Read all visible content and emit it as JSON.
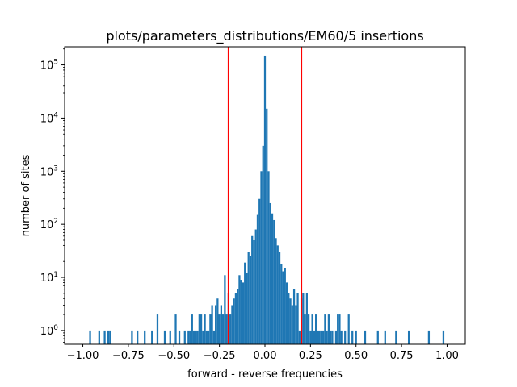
{
  "chart_data": {
    "type": "bar",
    "title": "plots/parameters_distributions/EM60/5 insertions",
    "xlabel": "forward - reverse frequencies",
    "ylabel": "number of sites",
    "xlim": [
      -1.1,
      1.1
    ],
    "ylim": [
      0.55,
      220000
    ],
    "yscale": "log",
    "grid": false,
    "legend": "none",
    "bar_color": "#1f77b4",
    "threshold_color": "#ff0000",
    "x_ticks": [
      -1.0,
      -0.75,
      -0.5,
      -0.25,
      0.0,
      0.25,
      0.5,
      0.75,
      1.0
    ],
    "x_tick_labels": [
      "−1.00",
      "−0.75",
      "−0.50",
      "−0.25",
      "0.00",
      "0.25",
      "0.50",
      "0.75",
      "1.00"
    ],
    "y_ticks": [
      1,
      10,
      100,
      1000,
      10000,
      100000
    ],
    "y_tick_labels": [
      {
        "base": "10",
        "exp": "0"
      },
      {
        "base": "10",
        "exp": "1"
      },
      {
        "base": "10",
        "exp": "2"
      },
      {
        "base": "10",
        "exp": "3"
      },
      {
        "base": "10",
        "exp": "4"
      },
      {
        "base": "10",
        "exp": "5"
      }
    ],
    "bin_width": 0.01,
    "bins": [
      {
        "x": -0.96,
        "count": 1
      },
      {
        "x": -0.91,
        "count": 1
      },
      {
        "x": -0.88,
        "count": 1
      },
      {
        "x": -0.86,
        "count": 1
      },
      {
        "x": -0.85,
        "count": 1
      },
      {
        "x": -0.73,
        "count": 1
      },
      {
        "x": -0.7,
        "count": 1
      },
      {
        "x": -0.66,
        "count": 1
      },
      {
        "x": -0.62,
        "count": 1
      },
      {
        "x": -0.59,
        "count": 2
      },
      {
        "x": -0.55,
        "count": 1
      },
      {
        "x": -0.52,
        "count": 1
      },
      {
        "x": -0.49,
        "count": 2
      },
      {
        "x": -0.47,
        "count": 1
      },
      {
        "x": -0.44,
        "count": 1
      },
      {
        "x": -0.42,
        "count": 1
      },
      {
        "x": -0.41,
        "count": 1
      },
      {
        "x": -0.4,
        "count": 2
      },
      {
        "x": -0.39,
        "count": 1
      },
      {
        "x": -0.38,
        "count": 1
      },
      {
        "x": -0.37,
        "count": 1
      },
      {
        "x": -0.36,
        "count": 2
      },
      {
        "x": -0.35,
        "count": 2
      },
      {
        "x": -0.34,
        "count": 1
      },
      {
        "x": -0.33,
        "count": 2
      },
      {
        "x": -0.32,
        "count": 1
      },
      {
        "x": -0.31,
        "count": 1
      },
      {
        "x": -0.3,
        "count": 2
      },
      {
        "x": -0.29,
        "count": 3
      },
      {
        "x": -0.28,
        "count": 1
      },
      {
        "x": -0.27,
        "count": 3
      },
      {
        "x": -0.26,
        "count": 4
      },
      {
        "x": -0.25,
        "count": 2
      },
      {
        "x": -0.24,
        "count": 3
      },
      {
        "x": -0.23,
        "count": 2
      },
      {
        "x": -0.22,
        "count": 11
      },
      {
        "x": -0.21,
        "count": 2
      },
      {
        "x": -0.2,
        "count": 5
      },
      {
        "x": -0.19,
        "count": 2
      },
      {
        "x": -0.18,
        "count": 3
      },
      {
        "x": -0.17,
        "count": 4
      },
      {
        "x": -0.16,
        "count": 5
      },
      {
        "x": -0.15,
        "count": 6
      },
      {
        "x": -0.14,
        "count": 11
      },
      {
        "x": -0.13,
        "count": 9
      },
      {
        "x": -0.12,
        "count": 8
      },
      {
        "x": -0.11,
        "count": 19
      },
      {
        "x": -0.1,
        "count": 12
      },
      {
        "x": -0.09,
        "count": 30
      },
      {
        "x": -0.08,
        "count": 25
      },
      {
        "x": -0.07,
        "count": 60
      },
      {
        "x": -0.06,
        "count": 50
      },
      {
        "x": -0.05,
        "count": 80
      },
      {
        "x": -0.04,
        "count": 150
      },
      {
        "x": -0.03,
        "count": 300
      },
      {
        "x": -0.02,
        "count": 1000
      },
      {
        "x": -0.01,
        "count": 3000
      },
      {
        "x": 0.0,
        "count": 150000
      },
      {
        "x": 0.01,
        "count": 15000
      },
      {
        "x": 0.02,
        "count": 1000
      },
      {
        "x": 0.03,
        "count": 250
      },
      {
        "x": 0.04,
        "count": 160
      },
      {
        "x": 0.05,
        "count": 120
      },
      {
        "x": 0.06,
        "count": 55
      },
      {
        "x": 0.07,
        "count": 40
      },
      {
        "x": 0.08,
        "count": 30
      },
      {
        "x": 0.09,
        "count": 18
      },
      {
        "x": 0.1,
        "count": 13
      },
      {
        "x": 0.11,
        "count": 15
      },
      {
        "x": 0.12,
        "count": 8
      },
      {
        "x": 0.13,
        "count": 5
      },
      {
        "x": 0.14,
        "count": 4
      },
      {
        "x": 0.15,
        "count": 3
      },
      {
        "x": 0.16,
        "count": 6
      },
      {
        "x": 0.17,
        "count": 3
      },
      {
        "x": 0.18,
        "count": 5
      },
      {
        "x": 0.19,
        "count": 1
      },
      {
        "x": 0.2,
        "count": 4
      },
      {
        "x": 0.21,
        "count": 5
      },
      {
        "x": 0.22,
        "count": 2
      },
      {
        "x": 0.23,
        "count": 5
      },
      {
        "x": 0.24,
        "count": 2
      },
      {
        "x": 0.25,
        "count": 1
      },
      {
        "x": 0.26,
        "count": 2
      },
      {
        "x": 0.27,
        "count": 1
      },
      {
        "x": 0.28,
        "count": 2
      },
      {
        "x": 0.29,
        "count": 1
      },
      {
        "x": 0.3,
        "count": 1
      },
      {
        "x": 0.31,
        "count": 1
      },
      {
        "x": 0.32,
        "count": 1
      },
      {
        "x": 0.33,
        "count": 2
      },
      {
        "x": 0.34,
        "count": 1
      },
      {
        "x": 0.35,
        "count": 2
      },
      {
        "x": 0.36,
        "count": 1
      },
      {
        "x": 0.37,
        "count": 1
      },
      {
        "x": 0.39,
        "count": 1
      },
      {
        "x": 0.4,
        "count": 2
      },
      {
        "x": 0.41,
        "count": 2
      },
      {
        "x": 0.42,
        "count": 1
      },
      {
        "x": 0.44,
        "count": 1
      },
      {
        "x": 0.46,
        "count": 2
      },
      {
        "x": 0.48,
        "count": 1
      },
      {
        "x": 0.5,
        "count": 1
      },
      {
        "x": 0.55,
        "count": 1
      },
      {
        "x": 0.62,
        "count": 1
      },
      {
        "x": 0.66,
        "count": 1
      },
      {
        "x": 0.72,
        "count": 1
      },
      {
        "x": 0.79,
        "count": 1
      },
      {
        "x": 0.9,
        "count": 1
      },
      {
        "x": 0.98,
        "count": 1
      }
    ],
    "vlines": [
      -0.2,
      0.2
    ]
  }
}
